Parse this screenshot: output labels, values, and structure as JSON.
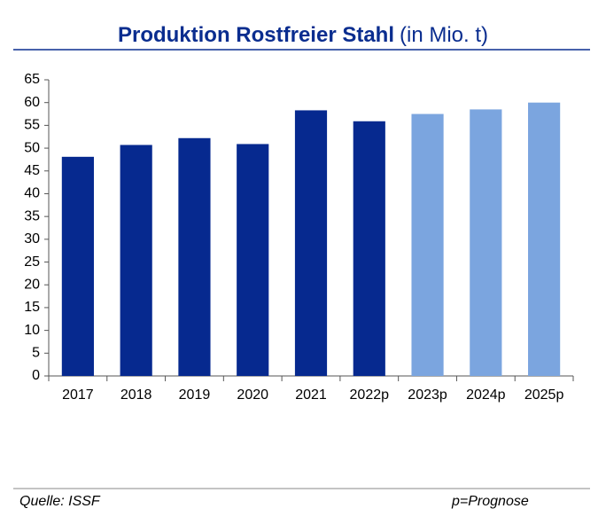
{
  "chart_data": {
    "type": "bar",
    "title": "Produktion Rostfreier Stahl",
    "title_suffix": "(in Mio. t)",
    "categories": [
      "2017",
      "2018",
      "2019",
      "2020",
      "2021",
      "2022p",
      "2023p",
      "2024p",
      "2025p"
    ],
    "values": [
      48.1,
      50.7,
      52.2,
      50.9,
      58.3,
      55.9,
      57.5,
      58.5,
      60.0
    ],
    "colors": [
      "#06298f",
      "#06298f",
      "#06298f",
      "#06298f",
      "#06298f",
      "#06298f",
      "#7ba5df",
      "#7ba5df",
      "#7ba5df"
    ],
    "ylim": [
      0,
      65
    ],
    "yticks": [
      0,
      5,
      10,
      15,
      20,
      25,
      30,
      35,
      40,
      45,
      50,
      55,
      60,
      65
    ],
    "grid": false,
    "source": "Quelle: ISSF",
    "note": "p=Prognose"
  }
}
